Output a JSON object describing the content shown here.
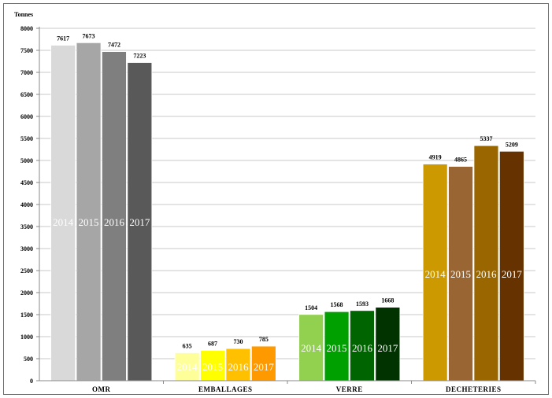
{
  "chart_data": {
    "type": "bar",
    "ylabel": "Tonnes",
    "ylim": [
      0,
      8000
    ],
    "yticks": [
      0,
      500,
      1000,
      1500,
      2000,
      2500,
      3000,
      3500,
      4000,
      4500,
      5000,
      5500,
      6000,
      6500,
      7000,
      7500,
      8000
    ],
    "categories": [
      "OMR",
      "EMBALLAGES",
      "VERRE",
      "DECHETERIES"
    ],
    "series": [
      {
        "name": "2014",
        "values": [
          7617,
          635,
          1504,
          4919
        ]
      },
      {
        "name": "2015",
        "values": [
          7673,
          687,
          1568,
          4865
        ]
      },
      {
        "name": "2016",
        "values": [
          7472,
          730,
          1593,
          5337
        ]
      },
      {
        "name": "2017",
        "values": [
          7223,
          785,
          1668,
          5209
        ]
      }
    ],
    "bar_colors": [
      [
        "#d9d9d9",
        "#a6a6a6",
        "#7f7f7f",
        "#595959"
      ],
      [
        "#ffff99",
        "#ffff00",
        "#ffc000",
        "#ff9900"
      ],
      [
        "#92d050",
        "#00a000",
        "#006400",
        "#003300"
      ],
      [
        "#cc9900",
        "#996633",
        "#996600",
        "#663300"
      ]
    ],
    "year_label_color": "#ffffff",
    "grid": true,
    "legend": "none (years labelled inside bars)"
  }
}
